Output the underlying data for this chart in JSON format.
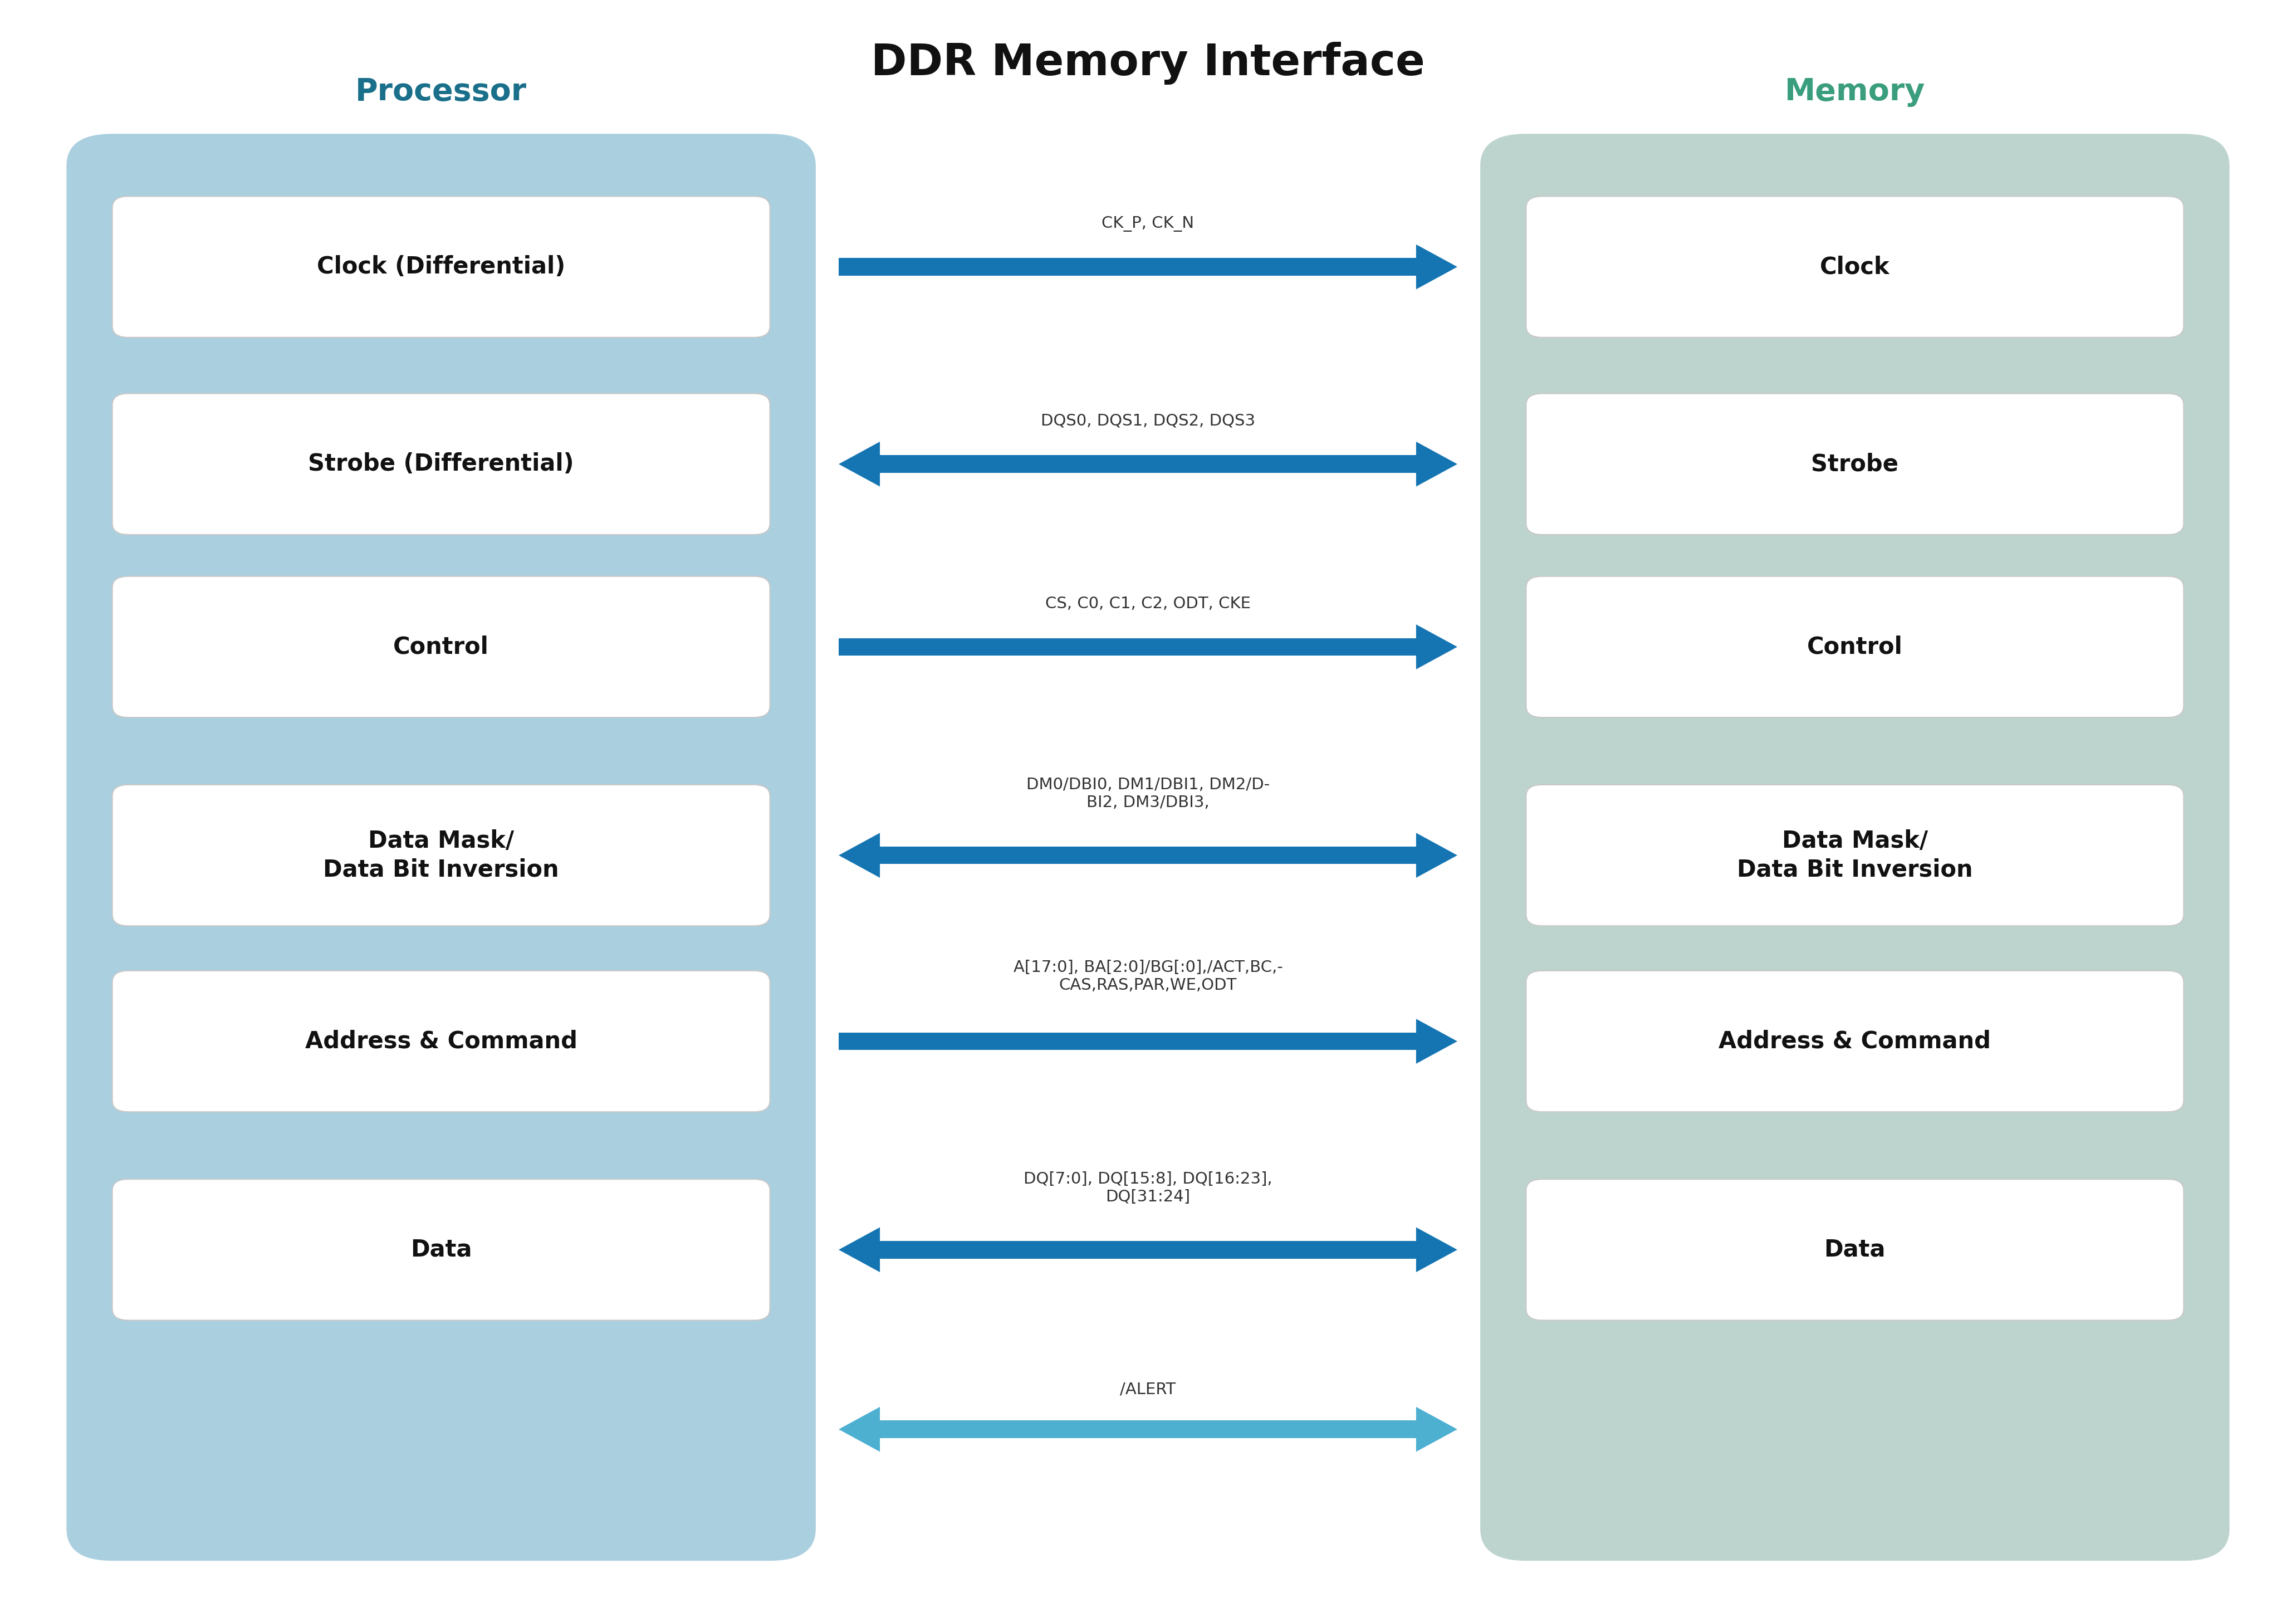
{
  "title": "DDR Memory Interface",
  "title_fontsize": 56,
  "title_color": "#111111",
  "title_fontweight": "bold",
  "processor_label": "Processor",
  "processor_label_color": "#1a6f8a",
  "memory_label": "Memory",
  "memory_label_color": "#3a9e7e",
  "label_fontsize": 40,
  "label_fontweight": "bold",
  "processor_box_color": "#aacfdf",
  "memory_box_color": "#bdd4ce",
  "inner_box_color": "#ffffff",
  "processor_items": [
    "Clock (Differential)",
    "Strobe (Differential)",
    "Control",
    "Data Mask/\nData Bit Inversion",
    "Address & Command",
    "Data"
  ],
  "memory_items": [
    "Clock",
    "Strobe",
    "Control",
    "Data Mask/\nData Bit Inversion",
    "Address & Command",
    "Data"
  ],
  "item_fontsize": 30,
  "item_fontweight": "bold",
  "signals": [
    "CK_P, CK_N",
    "DQS0, DQS1, DQS2, DQS3",
    "CS, C0, C1, C2, ODT, CKE",
    "DM0/DBI0, DM1/DBI1, DM2/D-\nBI2, DM3/DBI3,",
    "A[17:0], BA[2:0]/BG[:0],/ACT,BC,-\nCAS,RAS,PAR,WE,ODT",
    "DQ[7:0], DQ[15:8], DQ[16:23],\nDQ[31:24]",
    "/ALERT"
  ],
  "signal_fontsize": 21,
  "arrow_color": "#1475b2",
  "arrow_color_alert": "#4db0d0",
  "arrow_directions": [
    "right",
    "both",
    "right",
    "both",
    "right",
    "both",
    "both_light"
  ],
  "background_color": "#ffffff",
  "fig_width": 41.23,
  "fig_height": 28.87
}
